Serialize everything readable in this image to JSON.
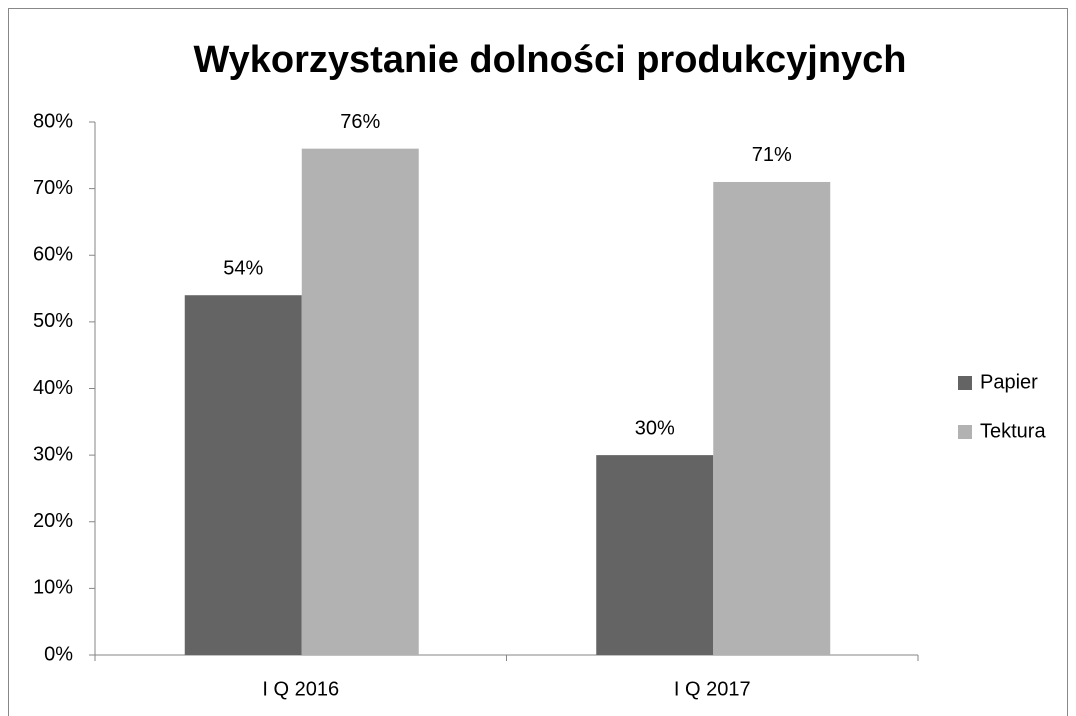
{
  "chart_data": {
    "type": "bar",
    "title": "Wykorzystanie dolności produkcyjnych",
    "categories": [
      "I Q 2016",
      "I Q 2017"
    ],
    "series": [
      {
        "name": "Papier",
        "color": "#646464",
        "values": [
          54,
          30
        ],
        "value_labels": [
          "54%",
          "30%"
        ]
      },
      {
        "name": "Tektura",
        "color": "#b2b2b2",
        "values": [
          76,
          71
        ],
        "value_labels": [
          "76%",
          "71%"
        ]
      }
    ],
    "ylim": [
      0,
      80
    ],
    "yticks": [
      {
        "value": 0,
        "label": "0%"
      },
      {
        "value": 10,
        "label": "10%"
      },
      {
        "value": 20,
        "label": "20%"
      },
      {
        "value": 30,
        "label": "30%"
      },
      {
        "value": 40,
        "label": "40%"
      },
      {
        "value": 50,
        "label": "50%"
      },
      {
        "value": 60,
        "label": "60%"
      },
      {
        "value": 70,
        "label": "70%"
      },
      {
        "value": 80,
        "label": "80%"
      }
    ],
    "grid": false,
    "legend": "right"
  }
}
